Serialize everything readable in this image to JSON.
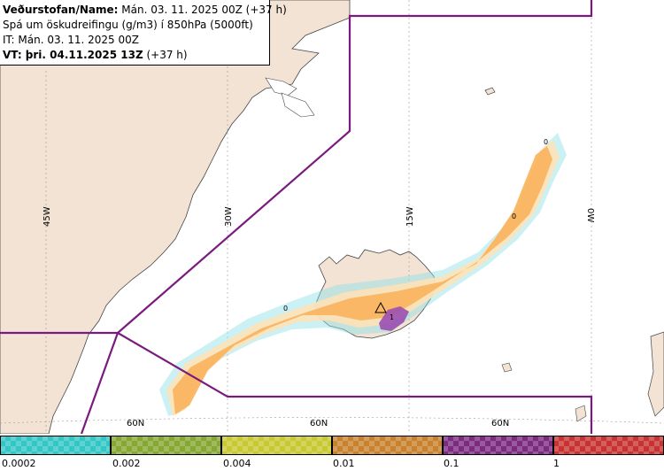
{
  "info": {
    "line1_bold": "Veðurstofan/Name:",
    "line1_rest": " Mán. 03. 11. 2025 00Z (+37 h)",
    "line2": "Spá um öskudreifingu (g/m3) í 850hPa (5000ft)",
    "line3": "IT: Mán. 03. 11. 2025 00Z",
    "line4_bold": "VT: þri. 04.11.2025 13Z",
    "line4_rest": " (+37 h)"
  },
  "map": {
    "longitude_labels": [
      "45W",
      "30W",
      "15W",
      "0W"
    ],
    "latitude_labels": [
      "60N",
      "60N",
      "60N"
    ],
    "contour_labels": [
      "0",
      "0",
      "0",
      "1"
    ],
    "colors": {
      "land": "#f2e3d5",
      "sea": "#ffffff",
      "fir_boundary": "#7a1a7e",
      "ash_low": "#f9b35c",
      "ash_light": "#fde2b8",
      "ash_cyan": "#8ce0e6",
      "ash_high": "#9a4fb0"
    }
  },
  "legend": {
    "colors": [
      "#33c6c6",
      "#86a832",
      "#c8c832",
      "#c8822e",
      "#7c2c80",
      "#c83232"
    ],
    "tick_labels": [
      "0.0002",
      "0.002",
      "0.004",
      "0.01",
      "0.1",
      "1"
    ]
  }
}
